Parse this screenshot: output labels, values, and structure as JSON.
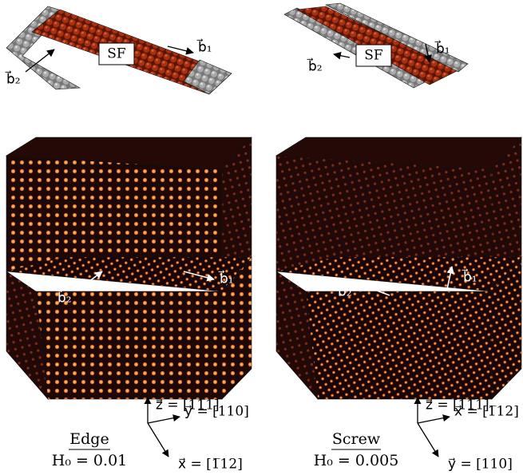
{
  "panels": [
    {
      "sf_label": "SF",
      "b1": "b⃗₁",
      "b2": "b⃗₂",
      "step_b1": "b⃗₁",
      "step_b2": "b⃗₂",
      "name": "Edge",
      "h0": "H₀ = 0.01",
      "axes": {
        "up": "z⃗ = [11̅1]",
        "right": "y⃗ = [110]",
        "diag": "x⃗ = [1̅12]"
      }
    },
    {
      "sf_label": "SF",
      "b1": "b⃗₁",
      "b2": "b⃗₂",
      "step_b1": "b⃗₁",
      "step_b2": "b⃗₂",
      "name": "Screw",
      "h0": "H₀ = 0.005",
      "axes": {
        "up": "z⃗ = [11̅1]",
        "right": "x⃗ = [1̅12]",
        "diag": "y⃗ = [110]"
      }
    }
  ]
}
